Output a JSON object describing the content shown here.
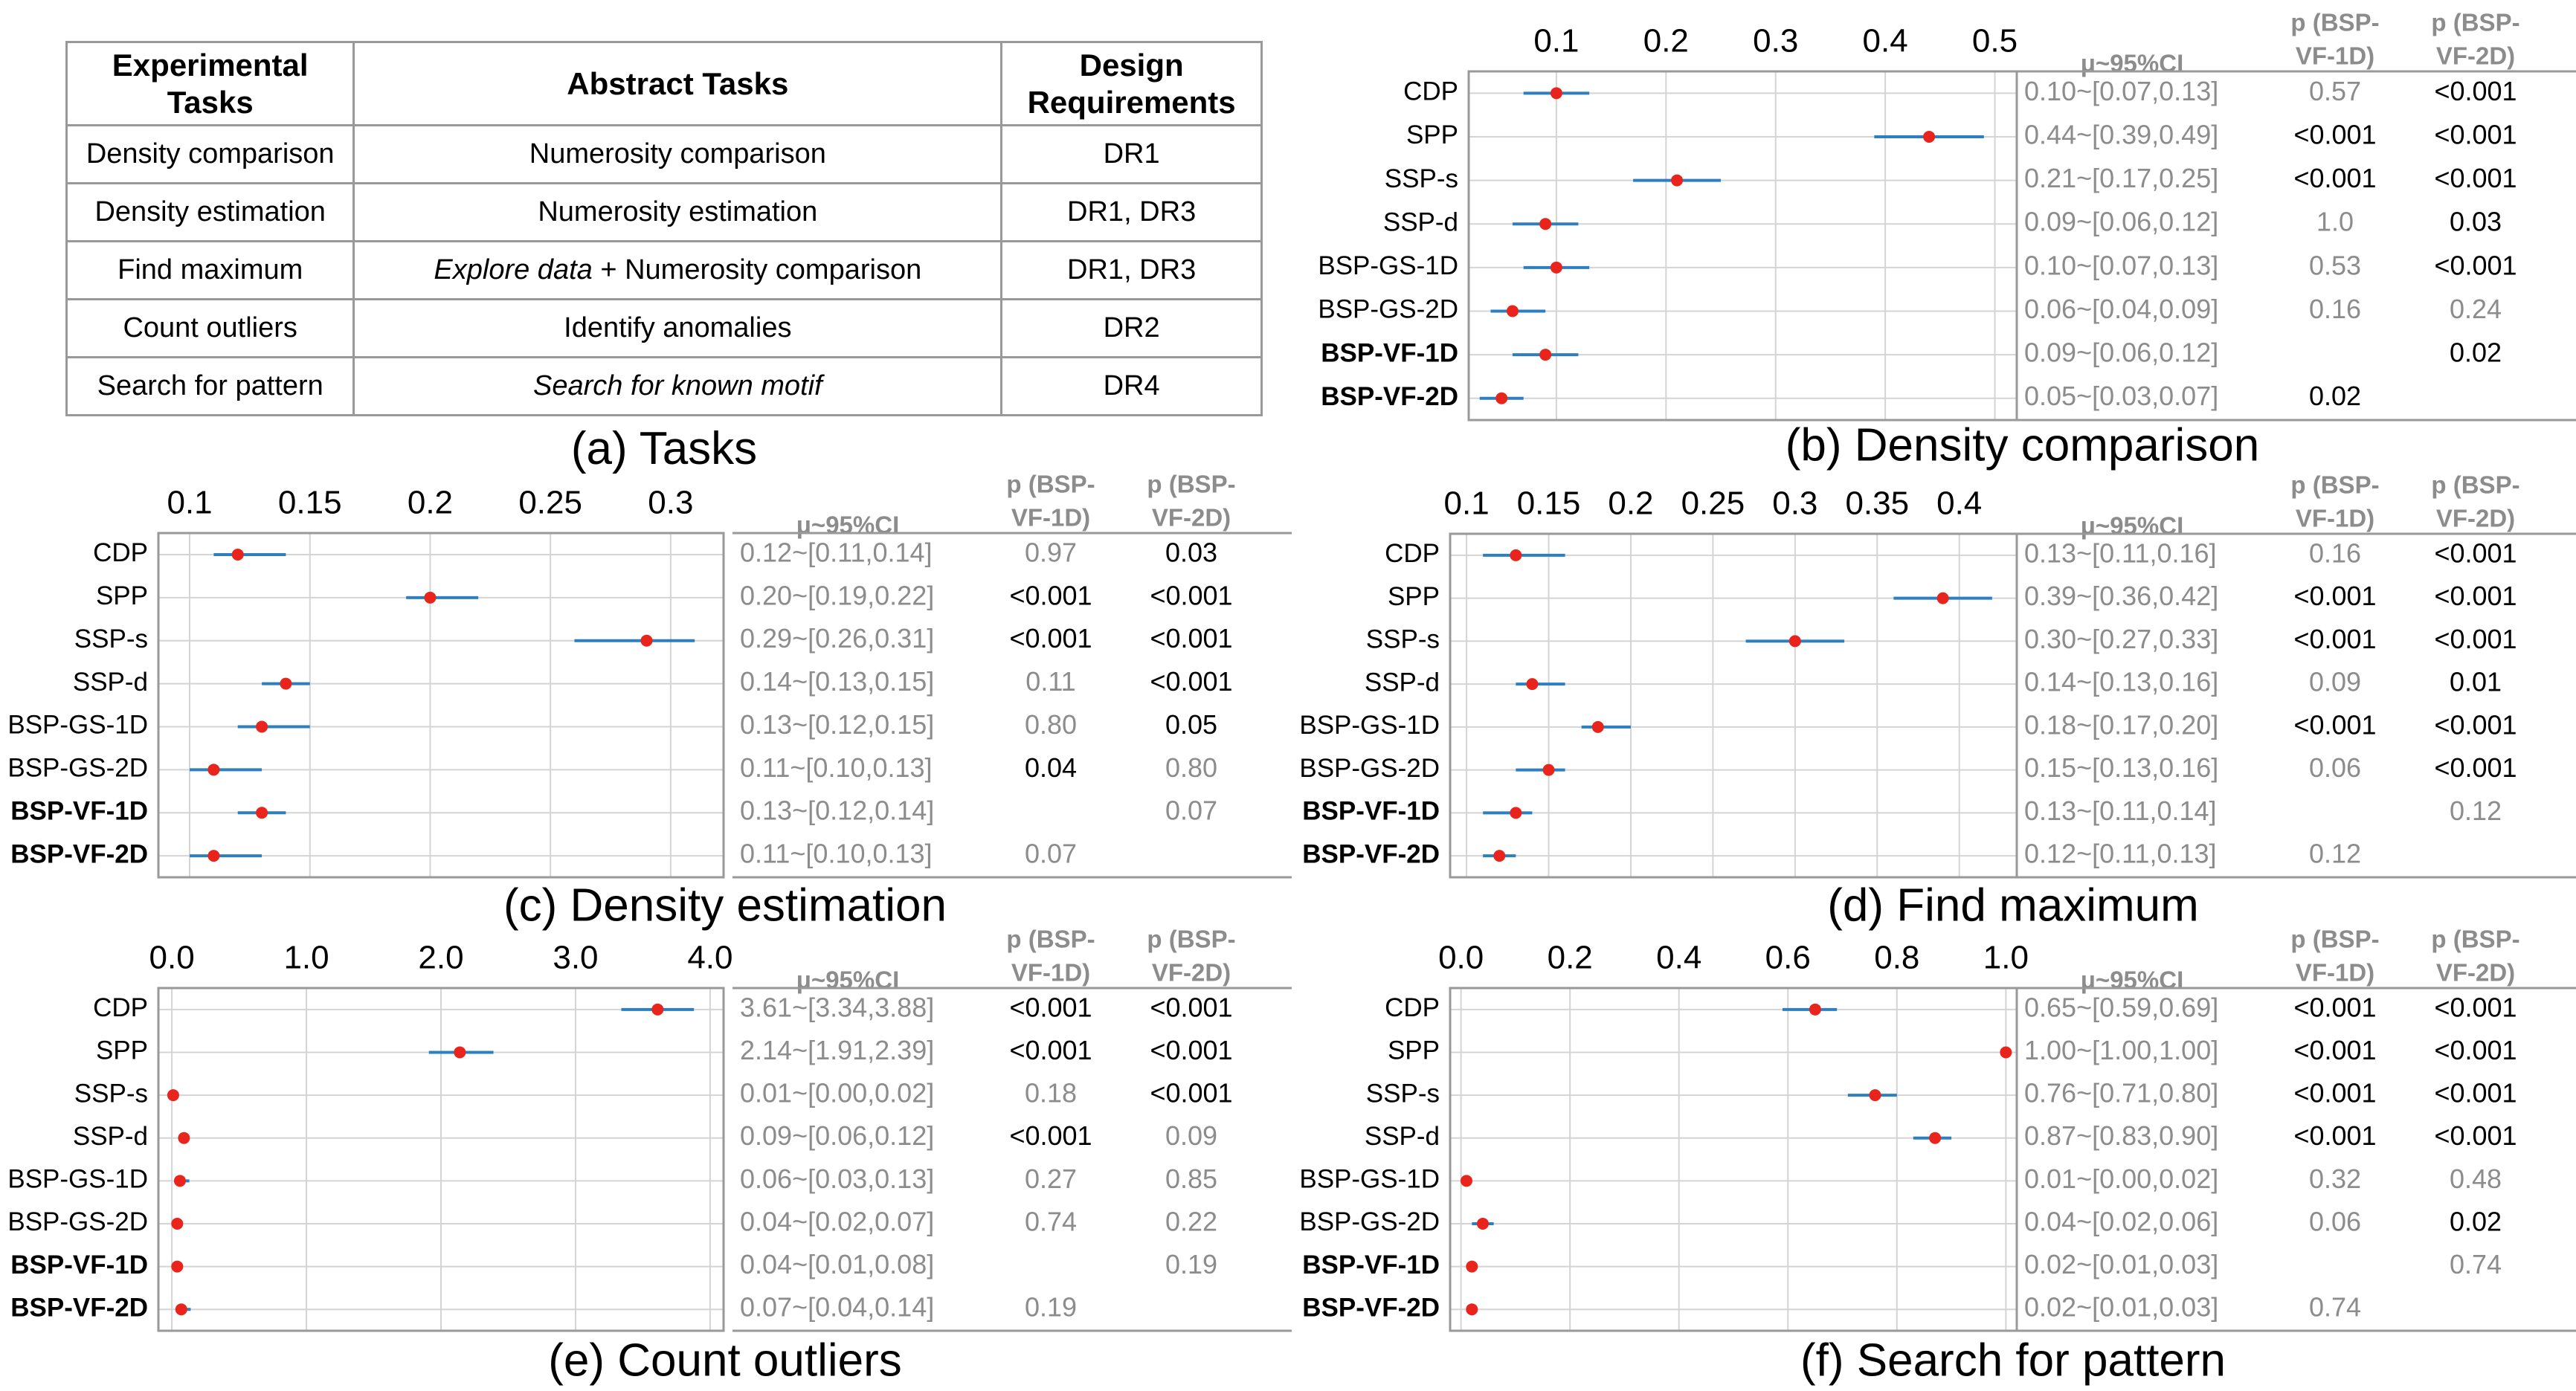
{
  "tasks_table": {
    "caption": "(a) Tasks",
    "headers": [
      "Experimental Tasks",
      "Abstract Tasks",
      "Design Requirements"
    ],
    "rows": [
      {
        "task": "Density comparison",
        "abstract": [
          {
            "text": "Numerosity comparison",
            "italic": false
          }
        ],
        "dr": "DR1"
      },
      {
        "task": "Density estimation",
        "abstract": [
          {
            "text": "Numerosity estimation",
            "italic": false
          }
        ],
        "dr": "DR1, DR3"
      },
      {
        "task": "Find maximum",
        "abstract": [
          {
            "text": "Explore data",
            "italic": true
          },
          {
            "text": " + Numerosity comparison",
            "italic": false
          }
        ],
        "dr": "DR1, DR3"
      },
      {
        "task": "Count outliers",
        "abstract": [
          {
            "text": "Identify anomalies",
            "italic": false
          }
        ],
        "dr": "DR2"
      },
      {
        "task": "Search for pattern",
        "abstract": [
          {
            "text": "Search for known motif",
            "italic": true
          }
        ],
        "dr": "DR4"
      }
    ]
  },
  "table_headers": {
    "ci": "μ~95%CI",
    "p1": [
      "p (BSP-",
      "VF-1D)"
    ],
    "p2": [
      "p (BSP-",
      "VF-2D)"
    ]
  },
  "colors": {
    "point": "#e8241c",
    "ci_line": "#2e7fc0",
    "grid": "#d4d4d4",
    "frame": "#999999",
    "gray_text": "#8c8c8c"
  },
  "chart_data": [
    {
      "id": "b",
      "type": "scatter",
      "title": "(b) Density comparison",
      "xticks": [
        0.1,
        0.2,
        0.3,
        0.4,
        0.5
      ],
      "xlim": [
        0.02,
        0.52
      ],
      "categories": [
        "CDP",
        "SPP",
        "SSP-s",
        "SSP-d",
        "BSP-GS-1D",
        "BSP-GS-2D",
        "BSP-VF-1D",
        "BSP-VF-2D"
      ],
      "bold": [
        false,
        false,
        false,
        false,
        false,
        false,
        true,
        true
      ],
      "means": [
        0.1,
        0.44,
        0.21,
        0.09,
        0.1,
        0.06,
        0.09,
        0.05
      ],
      "ci_low": [
        0.07,
        0.39,
        0.17,
        0.06,
        0.07,
        0.04,
        0.06,
        0.03
      ],
      "ci_high": [
        0.13,
        0.49,
        0.25,
        0.12,
        0.13,
        0.09,
        0.12,
        0.07
      ],
      "ci_text": [
        "0.10~[0.07,0.13]",
        "0.44~[0.39,0.49]",
        "0.21~[0.17,0.25]",
        "0.09~[0.06,0.12]",
        "0.10~[0.07,0.13]",
        "0.06~[0.04,0.09]",
        "0.09~[0.06,0.12]",
        "0.05~[0.03,0.07]"
      ],
      "p1": [
        "0.57",
        "<0.001",
        "<0.001",
        "1.0",
        "0.53",
        "0.16",
        "",
        "0.02"
      ],
      "p2": [
        "<0.001",
        "<0.001",
        "<0.001",
        "0.03",
        "<0.001",
        "0.24",
        "0.02",
        ""
      ],
      "p1_sig": [
        false,
        true,
        true,
        false,
        false,
        false,
        false,
        true
      ],
      "p2_sig": [
        true,
        true,
        true,
        true,
        true,
        false,
        true,
        false
      ]
    },
    {
      "id": "c",
      "type": "scatter",
      "title": "(c) Density estimation",
      "xticks": [
        0.1,
        0.15,
        0.2,
        0.25,
        0.3
      ],
      "xlim": [
        0.087,
        0.322
      ],
      "categories": [
        "CDP",
        "SPP",
        "SSP-s",
        "SSP-d",
        "BSP-GS-1D",
        "BSP-GS-2D",
        "BSP-VF-1D",
        "BSP-VF-2D"
      ],
      "bold": [
        false,
        false,
        false,
        false,
        false,
        false,
        true,
        true
      ],
      "means": [
        0.12,
        0.2,
        0.29,
        0.14,
        0.13,
        0.11,
        0.13,
        0.11
      ],
      "ci_low": [
        0.11,
        0.19,
        0.26,
        0.13,
        0.12,
        0.1,
        0.12,
        0.1
      ],
      "ci_high": [
        0.14,
        0.22,
        0.31,
        0.15,
        0.15,
        0.13,
        0.14,
        0.13
      ],
      "ci_text": [
        "0.12~[0.11,0.14]",
        "0.20~[0.19,0.22]",
        "0.29~[0.26,0.31]",
        "0.14~[0.13,0.15]",
        "0.13~[0.12,0.15]",
        "0.11~[0.10,0.13]",
        "0.13~[0.12,0.14]",
        "0.11~[0.10,0.13]"
      ],
      "p1": [
        "0.97",
        "<0.001",
        "<0.001",
        "0.11",
        "0.80",
        "0.04",
        "",
        "0.07"
      ],
      "p2": [
        "0.03",
        "<0.001",
        "<0.001",
        "<0.001",
        "0.05",
        "0.80",
        "0.07",
        ""
      ],
      "p1_sig": [
        false,
        true,
        true,
        false,
        false,
        true,
        false,
        false
      ],
      "p2_sig": [
        true,
        true,
        true,
        true,
        true,
        false,
        false,
        false
      ]
    },
    {
      "id": "d",
      "type": "scatter",
      "title": "(d) Find maximum",
      "xticks": [
        0.1,
        0.15,
        0.2,
        0.25,
        0.3,
        0.35,
        0.4
      ],
      "xlim": [
        0.09,
        0.435
      ],
      "categories": [
        "CDP",
        "SPP",
        "SSP-s",
        "SSP-d",
        "BSP-GS-1D",
        "BSP-GS-2D",
        "BSP-VF-1D",
        "BSP-VF-2D"
      ],
      "bold": [
        false,
        false,
        false,
        false,
        false,
        false,
        true,
        true
      ],
      "means": [
        0.13,
        0.39,
        0.3,
        0.14,
        0.18,
        0.15,
        0.13,
        0.12
      ],
      "ci_low": [
        0.11,
        0.36,
        0.27,
        0.13,
        0.17,
        0.13,
        0.11,
        0.11
      ],
      "ci_high": [
        0.16,
        0.42,
        0.33,
        0.16,
        0.2,
        0.16,
        0.14,
        0.13
      ],
      "ci_text": [
        "0.13~[0.11,0.16]",
        "0.39~[0.36,0.42]",
        "0.30~[0.27,0.33]",
        "0.14~[0.13,0.16]",
        "0.18~[0.17,0.20]",
        "0.15~[0.13,0.16]",
        "0.13~[0.11,0.14]",
        "0.12~[0.11,0.13]"
      ],
      "p1": [
        "0.16",
        "<0.001",
        "<0.001",
        "0.09",
        "<0.001",
        "0.06",
        "",
        "0.12"
      ],
      "p2": [
        "<0.001",
        "<0.001",
        "<0.001",
        "0.01",
        "<0.001",
        "<0.001",
        "0.12",
        ""
      ],
      "p1_sig": [
        false,
        true,
        true,
        false,
        true,
        false,
        false,
        false
      ],
      "p2_sig": [
        true,
        true,
        true,
        true,
        true,
        true,
        false,
        false
      ]
    },
    {
      "id": "e",
      "type": "scatter",
      "title": "(e) Count outliers",
      "xticks": [
        0.0,
        1.0,
        2.0,
        3.0,
        4.0
      ],
      "xlim": [
        -0.1,
        4.1
      ],
      "categories": [
        "CDP",
        "SPP",
        "SSP-s",
        "SSP-d",
        "BSP-GS-1D",
        "BSP-GS-2D",
        "BSP-VF-1D",
        "BSP-VF-2D"
      ],
      "bold": [
        false,
        false,
        false,
        false,
        false,
        false,
        true,
        true
      ],
      "means": [
        3.61,
        2.14,
        0.01,
        0.09,
        0.06,
        0.04,
        0.04,
        0.07
      ],
      "ci_low": [
        3.34,
        1.91,
        0.0,
        0.06,
        0.03,
        0.02,
        0.01,
        0.04
      ],
      "ci_high": [
        3.88,
        2.39,
        0.02,
        0.12,
        0.13,
        0.07,
        0.08,
        0.14
      ],
      "ci_text": [
        "3.61~[3.34,3.88]",
        "2.14~[1.91,2.39]",
        "0.01~[0.00,0.02]",
        "0.09~[0.06,0.12]",
        "0.06~[0.03,0.13]",
        "0.04~[0.02,0.07]",
        "0.04~[0.01,0.08]",
        "0.07~[0.04,0.14]"
      ],
      "p1": [
        "<0.001",
        "<0.001",
        "0.18",
        "<0.001",
        "0.27",
        "0.74",
        "",
        "0.19"
      ],
      "p2": [
        "<0.001",
        "<0.001",
        "<0.001",
        "0.09",
        "0.85",
        "0.22",
        "0.19",
        ""
      ],
      "p1_sig": [
        true,
        true,
        false,
        true,
        false,
        false,
        false,
        false
      ],
      "p2_sig": [
        true,
        true,
        true,
        false,
        false,
        false,
        false,
        false
      ]
    },
    {
      "id": "f",
      "type": "scatter",
      "title": "(f) Search for pattern",
      "xticks": [
        0.0,
        0.2,
        0.4,
        0.6,
        0.8,
        1.0
      ],
      "xlim": [
        -0.02,
        1.02
      ],
      "categories": [
        "CDP",
        "SPP",
        "SSP-s",
        "SSP-d",
        "BSP-GS-1D",
        "BSP-GS-2D",
        "BSP-VF-1D",
        "BSP-VF-2D"
      ],
      "bold": [
        false,
        false,
        false,
        false,
        false,
        false,
        true,
        true
      ],
      "means": [
        0.65,
        1.0,
        0.76,
        0.87,
        0.01,
        0.04,
        0.02,
        0.02
      ],
      "ci_low": [
        0.59,
        1.0,
        0.71,
        0.83,
        0.0,
        0.02,
        0.01,
        0.01
      ],
      "ci_high": [
        0.69,
        1.0,
        0.8,
        0.9,
        0.02,
        0.06,
        0.03,
        0.03
      ],
      "ci_text": [
        "0.65~[0.59,0.69]",
        "1.00~[1.00,1.00]",
        "0.76~[0.71,0.80]",
        "0.87~[0.83,0.90]",
        "0.01~[0.00,0.02]",
        "0.04~[0.02,0.06]",
        "0.02~[0.01,0.03]",
        "0.02~[0.01,0.03]"
      ],
      "p1": [
        "<0.001",
        "<0.001",
        "<0.001",
        "<0.001",
        "0.32",
        "0.06",
        "",
        "0.74"
      ],
      "p2": [
        "<0.001",
        "<0.001",
        "<0.001",
        "<0.001",
        "0.48",
        "0.02",
        "0.74",
        ""
      ],
      "p1_sig": [
        true,
        true,
        true,
        true,
        false,
        false,
        false,
        false
      ],
      "p2_sig": [
        true,
        true,
        true,
        true,
        false,
        true,
        false,
        false
      ]
    }
  ]
}
